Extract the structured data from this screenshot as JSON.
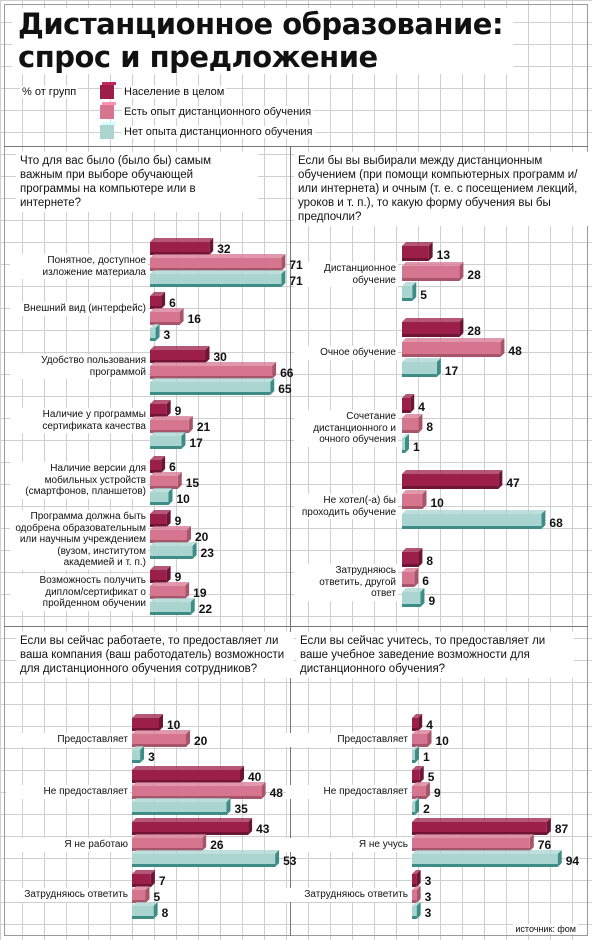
{
  "title": [
    "Дистанционное образование:",
    "спрос и предложение"
  ],
  "subtitle": "% от групп",
  "source": "источник: фом",
  "colors": {
    "series": [
      "#9c1f4a",
      "#d67590",
      "#a9d4d0"
    ],
    "dark": [
      "#6e1434",
      "#a8546b",
      "#3d8c86"
    ]
  },
  "legend": [
    "Население в целом",
    "Есть опыт дистанционного обучения",
    "Нет опыта дистанционного обучения"
  ],
  "chart_data": [
    {
      "type": "bar",
      "question": "Что для вас было (было бы) самым важным при выборе обучающей программы на компьютере или в интернете?",
      "categories": [
        "Понятное, доступное изложение материала",
        "Внешний вид (интерфейс)",
        "Удобство пользования программой",
        "Наличие у программы сертификата качества",
        "Наличие версии для мобильных устройств (смартфонов, планшетов)",
        "Программа должна быть одобрена образовательным или научным учреждением (вузом, институтом академией и т. п.)",
        "Возможность получить диплом/сертификат о пройденном обучении"
      ],
      "series": [
        {
          "name": "Население в целом",
          "values": [
            32,
            6,
            30,
            9,
            6,
            9,
            9
          ]
        },
        {
          "name": "Есть опыт дистанционного обучения",
          "values": [
            71,
            16,
            66,
            21,
            15,
            20,
            19
          ]
        },
        {
          "name": "Нет опыта дистанционного обучения",
          "values": [
            71,
            3,
            65,
            17,
            10,
            23,
            22
          ]
        }
      ]
    },
    {
      "type": "bar",
      "question": "Если бы вы выбирали между дистанционным обучением (при помощи компьютерных программ и/или интернета) и очным (т. е. с посещением лекций, уроков и т. п.), то какую форму обучения вы бы предпочли?",
      "categories": [
        "Дистанционное обучение",
        "Очное обучение",
        "Сочетание дистанционного и очного обучения",
        "Не хотел(-а) бы проходить обучение",
        "Затрудняюсь ответить, другой ответ"
      ],
      "series": [
        {
          "name": "Население в целом",
          "values": [
            13,
            28,
            4,
            47,
            8
          ]
        },
        {
          "name": "Есть опыт дистанционного обучения",
          "values": [
            28,
            48,
            8,
            10,
            6
          ]
        },
        {
          "name": "Нет опыта дистанционного обучения",
          "values": [
            5,
            17,
            1,
            68,
            9
          ]
        }
      ]
    },
    {
      "type": "bar",
      "question": "Если вы сейчас работаете, то предоставляет ли ваша компания (ваш работодатель) возможности для дистанционного обучения сотрудников?",
      "categories": [
        "Предоставляет",
        "Не предоставляет",
        "Я не работаю",
        "Затрудняюсь ответить"
      ],
      "series": [
        {
          "name": "Население в целом",
          "values": [
            10,
            40,
            43,
            7
          ]
        },
        {
          "name": "Есть опыт дистанционного обучения",
          "values": [
            20,
            48,
            26,
            5
          ]
        },
        {
          "name": "Нет опыта дистанционного обучения",
          "values": [
            3,
            35,
            53,
            8
          ]
        }
      ]
    },
    {
      "type": "bar",
      "question": "Если вы сейчас учитесь, то предоставляет ли ваше учебное заведение возможности для дистанционного обучения?",
      "categories": [
        "Предоставляет",
        "Не предоставляет",
        "Я не учусь",
        "Затрудняюсь ответить"
      ],
      "series": [
        {
          "name": "Население в целом",
          "values": [
            4,
            5,
            87,
            3
          ]
        },
        {
          "name": "Есть опыт дистанционного обучения",
          "values": [
            10,
            9,
            76,
            3
          ]
        },
        {
          "name": "Нет опыта дистанционного обучения",
          "values": [
            1,
            2,
            94,
            3
          ]
        }
      ]
    }
  ]
}
